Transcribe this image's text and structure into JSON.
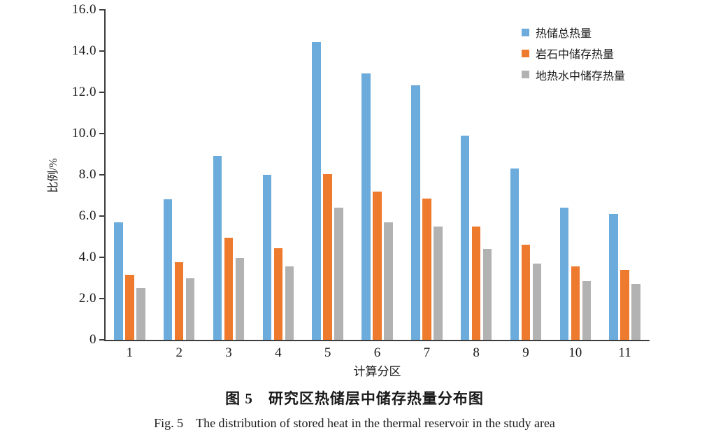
{
  "figure": {
    "caption_zh": "图 5　研究区热储层中储存热量分布图",
    "caption_en": "Fig. 5　The distribution of stored heat in the thermal reservoir in the study area"
  },
  "chart_data": {
    "type": "bar",
    "title": "",
    "xlabel": "计算分区",
    "ylabel": "比例/%",
    "ylim": [
      0,
      16
    ],
    "ytick_values": [
      0,
      2,
      4,
      6,
      8,
      10,
      12,
      14,
      16
    ],
    "ytick_labels": [
      "0",
      "2.0",
      "4.0",
      "6.0",
      "8.0",
      "10.0",
      "12.0",
      "14.0",
      "16.0"
    ],
    "grid": false,
    "legend_position": "top-right",
    "categories": [
      "1",
      "2",
      "3",
      "4",
      "5",
      "6",
      "7",
      "8",
      "9",
      "10",
      "11"
    ],
    "series": [
      {
        "name": "热储总热量",
        "color": "#6CACDC",
        "values": [
          5.7,
          6.8,
          8.9,
          8.0,
          14.45,
          12.9,
          12.35,
          9.9,
          8.3,
          6.4,
          6.1
        ]
      },
      {
        "name": "岩石中储存热量",
        "color": "#EE7A2D",
        "values": [
          3.15,
          3.75,
          4.95,
          4.45,
          8.05,
          7.2,
          6.85,
          5.5,
          4.6,
          3.55,
          3.4
        ]
      },
      {
        "name": "地热水中储存热量",
        "color": "#B2B2B2",
        "values": [
          2.5,
          3.0,
          3.95,
          3.55,
          6.4,
          5.7,
          5.5,
          4.4,
          3.7,
          2.85,
          2.7
        ]
      }
    ]
  }
}
